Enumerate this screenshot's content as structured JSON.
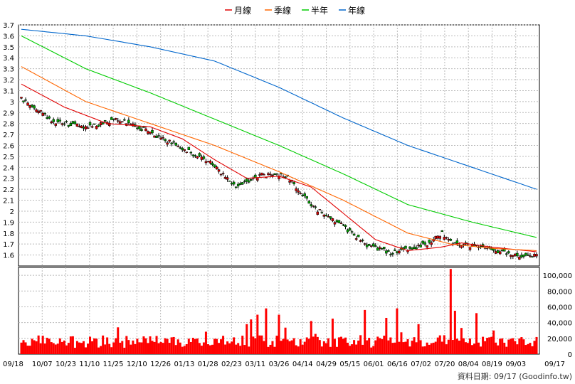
{
  "chart_data": [
    {
      "type": "candlestick",
      "legend": [
        {
          "label": "月線",
          "color": "#e00000"
        },
        {
          "label": "季線",
          "color": "#ff6600"
        },
        {
          "label": "半年",
          "color": "#00cc00"
        },
        {
          "label": "年線",
          "color": "#0066cc"
        }
      ],
      "y_ticks": [
        "3.7",
        "3.6",
        "3.5",
        "3.4",
        "3.3",
        "3.2",
        "3.1",
        "3",
        "2.9",
        "2.8",
        "2.7",
        "2.6",
        "2.5",
        "2.4",
        "2.3",
        "2.2",
        "2.1",
        "2",
        "1.9",
        "1.8",
        "1.7",
        "1.6"
      ],
      "ylim": [
        1.5,
        3.7
      ],
      "x_labels": [
        "09/18",
        "10/07",
        "10/23",
        "11/10",
        "11/25",
        "12/10",
        "12/26",
        "01/13",
        "01/28",
        "02/23",
        "03/11",
        "03/26",
        "04/14",
        "04/29",
        "05/15",
        "06/01",
        "06/16",
        "07/02",
        "07/20",
        "08/04",
        "08/19",
        "09/03",
        "09/17"
      ],
      "grid": true,
      "up_color": "#e00000",
      "down_color": "#00aa00",
      "close_anchors": [
        [
          0,
          3.03
        ],
        [
          15,
          2.82
        ],
        [
          30,
          2.76
        ],
        [
          45,
          2.84
        ],
        [
          60,
          2.72
        ],
        [
          75,
          2.57
        ],
        [
          90,
          2.42
        ],
        [
          100,
          2.21
        ],
        [
          112,
          2.33
        ],
        [
          124,
          2.32
        ],
        [
          135,
          2.05
        ],
        [
          150,
          1.86
        ],
        [
          160,
          1.7
        ],
        [
          172,
          1.62
        ],
        [
          182,
          1.66
        ],
        [
          190,
          1.71
        ],
        [
          196,
          1.8
        ],
        [
          200,
          1.72
        ],
        [
          215,
          1.66
        ],
        [
          230,
          1.6
        ],
        [
          240,
          1.6
        ]
      ],
      "ma_series": [
        {
          "name": "月線",
          "color": "#e00000",
          "values": [
            [
              0,
              3.16
            ],
            [
              20,
              2.95
            ],
            [
              40,
              2.8
            ],
            [
              60,
              2.77
            ],
            [
              75,
              2.66
            ],
            [
              90,
              2.47
            ],
            [
              105,
              2.3
            ],
            [
              120,
              2.32
            ],
            [
              135,
              2.22
            ],
            [
              150,
              1.98
            ],
            [
              165,
              1.74
            ],
            [
              180,
              1.64
            ],
            [
              195,
              1.67
            ],
            [
              205,
              1.71
            ],
            [
              220,
              1.67
            ],
            [
              240,
              1.63
            ]
          ]
        },
        {
          "name": "季線",
          "color": "#ff6600",
          "values": [
            [
              0,
              3.32
            ],
            [
              30,
              3.0
            ],
            [
              60,
              2.8
            ],
            [
              90,
              2.6
            ],
            [
              120,
              2.36
            ],
            [
              150,
              2.1
            ],
            [
              180,
              1.8
            ],
            [
              200,
              1.7
            ],
            [
              220,
              1.66
            ],
            [
              240,
              1.64
            ]
          ]
        },
        {
          "name": "半年",
          "color": "#00cc00",
          "values": [
            [
              0,
              3.6
            ],
            [
              30,
              3.3
            ],
            [
              60,
              3.08
            ],
            [
              90,
              2.84
            ],
            [
              120,
              2.6
            ],
            [
              150,
              2.34
            ],
            [
              180,
              2.06
            ],
            [
              210,
              1.9
            ],
            [
              240,
              1.76
            ]
          ]
        },
        {
          "name": "年線",
          "color": "#0066cc",
          "values": [
            [
              0,
              3.66
            ],
            [
              30,
              3.6
            ],
            [
              60,
              3.5
            ],
            [
              90,
              3.37
            ],
            [
              120,
              3.13
            ],
            [
              150,
              2.85
            ],
            [
              180,
              2.6
            ],
            [
              210,
              2.4
            ],
            [
              240,
              2.2
            ]
          ]
        }
      ]
    },
    {
      "type": "bar",
      "y_ticks": [
        "100,000",
        "80,000",
        "60,000",
        "40,000",
        "20,000",
        "0"
      ],
      "ylim": [
        0,
        110000
      ],
      "color": "#ff0000",
      "spikes": [
        [
          45,
          34000
        ],
        [
          105,
          38000
        ],
        [
          107,
          44000
        ],
        [
          110,
          50000
        ],
        [
          114,
          58000
        ],
        [
          120,
          50000
        ],
        [
          135,
          42000
        ],
        [
          145,
          45000
        ],
        [
          160,
          56000
        ],
        [
          170,
          46000
        ],
        [
          175,
          58000
        ],
        [
          185,
          38000
        ],
        [
          200,
          108000
        ],
        [
          202,
          55000
        ],
        [
          212,
          52000
        ],
        [
          220,
          30000
        ]
      ]
    }
  ],
  "footer": {
    "text": "資料日期: 09/17  (Goodinfo.tw)"
  }
}
